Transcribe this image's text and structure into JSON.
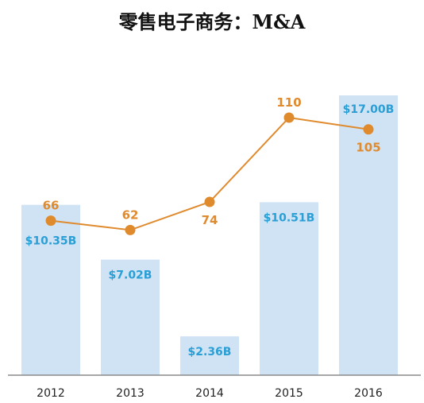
{
  "chart_data": {
    "type": "bar",
    "title": "零售电子商务：M&A",
    "categories": [
      "2012",
      "2013",
      "2014",
      "2015",
      "2016"
    ],
    "series": [
      {
        "type": "bar",
        "values": [
          10.35,
          7.02,
          2.36,
          10.51,
          17.0
        ],
        "labels": [
          "$10.35B",
          "$7.02B",
          "$2.36B",
          "$10.51B",
          "$17.00B"
        ],
        "color": "#cfe3f5",
        "label_color": "#2a9fd6"
      },
      {
        "type": "line",
        "values": [
          66,
          62,
          74,
          110,
          105
        ],
        "labels": [
          "66",
          "62",
          "74",
          "110",
          "105"
        ],
        "color": "#e08a2e"
      }
    ],
    "ylim": [
      0,
      18
    ],
    "y2lim": [
      0,
      141
    ],
    "legend": "none",
    "grid": false
  }
}
